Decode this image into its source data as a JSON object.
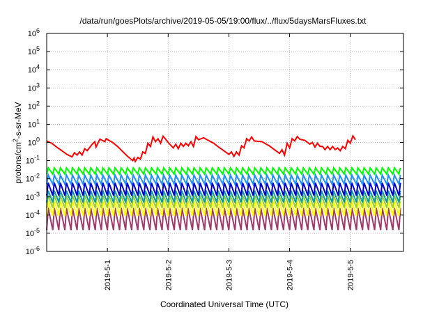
{
  "chart_data": {
    "type": "line",
    "title": "/data/run/goesPlots/archive/2019-05-05/19:00/flux/../flux/5daysMarsFluxes.txt",
    "xlabel": "Coordinated Universal Time (UTC)",
    "ylabel_parts": [
      "protons/cm",
      "2",
      "-s-sr-MeV"
    ],
    "y_scale": "log",
    "ylim": [
      1e-06,
      1000000.0
    ],
    "xlim": [
      "2019-04-30T00:00",
      "2019-05-05T21:00"
    ],
    "grid": true,
    "y_ticks": [
      {
        "base": "10",
        "exp": "-6"
      },
      {
        "base": "10",
        "exp": "-5"
      },
      {
        "base": "10",
        "exp": "-4"
      },
      {
        "base": "10",
        "exp": "-3"
      },
      {
        "base": "10",
        "exp": "-2"
      },
      {
        "base": "10",
        "exp": "-1"
      },
      {
        "base": "10",
        "exp": "0"
      },
      {
        "base": "10",
        "exp": "1"
      },
      {
        "base": "10",
        "exp": "2"
      },
      {
        "base": "10",
        "exp": "3"
      },
      {
        "base": "10",
        "exp": "4"
      },
      {
        "base": "10",
        "exp": "5"
      },
      {
        "base": "10",
        "exp": "6"
      }
    ],
    "x_ticks": [
      {
        "label": "2019-5-1",
        "value": "2019-05-01T00:00"
      },
      {
        "label": "2019-5-2",
        "value": "2019-05-02T00:00"
      },
      {
        "label": "2019-5-3",
        "value": "2019-05-03T00:00"
      },
      {
        "label": "2019-5-4",
        "value": "2019-05-04T00:00"
      },
      {
        "label": "2019-5-5",
        "value": "2019-05-05T00:00"
      }
    ],
    "series": [
      {
        "color": "#ff0000",
        "sawtooth": false,
        "points": [
          [
            0,
            1.2
          ],
          [
            2,
            0.9
          ],
          [
            4,
            0.55
          ],
          [
            6,
            0.35
          ],
          [
            8,
            0.22
          ],
          [
            10,
            0.16
          ],
          [
            11,
            0.27
          ],
          [
            12,
            0.2
          ],
          [
            13,
            0.3
          ],
          [
            14,
            0.2
          ],
          [
            15,
            0.45
          ],
          [
            16,
            0.35
          ],
          [
            18,
            0.8
          ],
          [
            19,
            1.1
          ],
          [
            19.5,
            0.55
          ],
          [
            21,
            1.5
          ],
          [
            23,
            1.1
          ],
          [
            23.5,
            1.6
          ],
          [
            26,
            1.0
          ],
          [
            28,
            0.6
          ],
          [
            30,
            0.32
          ],
          [
            32,
            0.17
          ],
          [
            34,
            0.1
          ],
          [
            34.5,
            0.14
          ],
          [
            35,
            0.09
          ],
          [
            36,
            0.15
          ],
          [
            37,
            0.12
          ],
          [
            38,
            0.3
          ],
          [
            39,
            0.25
          ],
          [
            40,
            0.9
          ],
          [
            41,
            0.6
          ],
          [
            42,
            2.0
          ],
          [
            43,
            1.1
          ],
          [
            44,
            1.6
          ],
          [
            45,
            0.9
          ],
          [
            46,
            2.2
          ],
          [
            47,
            1.5
          ],
          [
            48,
            1.0
          ],
          [
            50,
            0.5
          ],
          [
            51,
            0.8
          ],
          [
            52,
            0.45
          ],
          [
            53,
            0.9
          ],
          [
            54,
            0.6
          ],
          [
            55,
            0.9
          ],
          [
            56,
            0.65
          ],
          [
            57,
            1.1
          ],
          [
            58,
            0.6
          ],
          [
            59,
            2.1
          ],
          [
            60,
            1.4
          ],
          [
            62,
            1.8
          ],
          [
            63,
            1.5
          ],
          [
            66,
            0.9
          ],
          [
            68,
            0.55
          ],
          [
            70,
            0.35
          ],
          [
            72,
            0.22
          ],
          [
            73,
            0.3
          ],
          [
            74,
            0.17
          ],
          [
            75,
            0.3
          ],
          [
            76,
            0.2
          ],
          [
            77,
            0.65
          ],
          [
            78,
            0.5
          ],
          [
            79,
            1.6
          ],
          [
            80,
            1.2
          ],
          [
            81,
            2.0
          ],
          [
            82,
            1.2
          ],
          [
            85,
            1.1
          ],
          [
            88,
            0.65
          ],
          [
            90,
            0.4
          ],
          [
            92,
            0.25
          ],
          [
            93,
            0.4
          ],
          [
            94,
            0.2
          ],
          [
            95,
            0.9
          ],
          [
            96,
            0.5
          ],
          [
            97,
            1.6
          ],
          [
            98,
            1.2
          ],
          [
            99,
            2.1
          ],
          [
            100,
            1.5
          ],
          [
            102,
            1.3
          ],
          [
            104,
            0.8
          ],
          [
            105,
            1.0
          ],
          [
            106,
            0.55
          ],
          [
            107,
            0.9
          ],
          [
            108,
            0.6
          ],
          [
            109,
            0.6
          ],
          [
            110,
            0.4
          ],
          [
            111,
            0.6
          ],
          [
            112,
            0.4
          ],
          [
            113,
            0.6
          ],
          [
            114,
            0.4
          ],
          [
            115,
            0.5
          ],
          [
            116,
            0.35
          ],
          [
            117,
            0.6
          ],
          [
            118,
            0.45
          ],
          [
            119,
            1.3
          ],
          [
            120,
            0.9
          ],
          [
            121,
            2.3
          ],
          [
            122,
            1.4
          ]
        ]
      },
      {
        "color": "#00ff00",
        "sawtooth": true,
        "high": 0.04,
        "low": 0.018
      },
      {
        "color": "#1e90ff",
        "sawtooth": true,
        "high": 0.016,
        "low": 0.005
      },
      {
        "color": "#0000cd",
        "sawtooth": true,
        "high": 0.006,
        "low": 0.0012
      },
      {
        "color": "#0a9c9c",
        "sawtooth": true,
        "high": 0.0022,
        "low": 0.0005
      },
      {
        "color": "#9acd32",
        "sawtooth": true,
        "high": 0.0012,
        "low": 0.00025
      },
      {
        "color": "#ffff00",
        "sawtooth": true,
        "high": 0.0006,
        "low": 9e-05
      },
      {
        "color": "#a0386a",
        "sawtooth": true,
        "high": 0.00025,
        "low": 1.5e-05
      }
    ],
    "sawtooth_period_hours": 2.4
  }
}
